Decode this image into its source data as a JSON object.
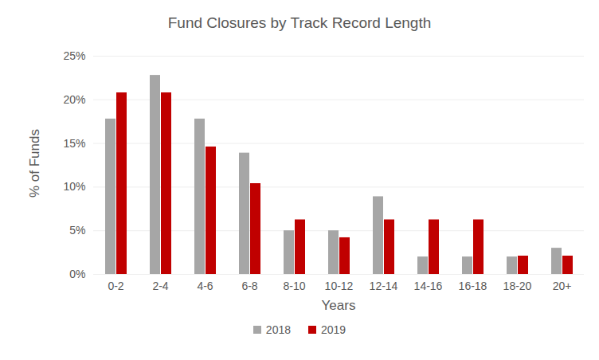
{
  "chart_data": {
    "type": "bar",
    "title": "Fund Closures by Track Record Length",
    "x_label": "Years",
    "y_label": "% of Funds",
    "categories": [
      "0-2",
      "2-4",
      "4-6",
      "6-8",
      "8-10",
      "10-12",
      "12-14",
      "14-16",
      "16-18",
      "18-20",
      "20+"
    ],
    "series": [
      {
        "name": "2018",
        "color": "#a6a6a6",
        "values": [
          17.8,
          22.8,
          17.8,
          13.9,
          5.0,
          5.0,
          8.9,
          2.0,
          2.0,
          2.0,
          3.0
        ]
      },
      {
        "name": "2019",
        "color": "#c00000",
        "values": [
          20.8,
          20.8,
          14.6,
          10.4,
          6.25,
          4.2,
          6.25,
          6.25,
          6.25,
          2.1,
          2.1
        ]
      }
    ],
    "ylim": [
      0,
      25
    ],
    "yticks": [
      {
        "value": 0,
        "label": "0%"
      },
      {
        "value": 5,
        "label": "5%"
      },
      {
        "value": 10,
        "label": "10%"
      },
      {
        "value": 15,
        "label": "15%"
      },
      {
        "value": 20,
        "label": "20%"
      },
      {
        "value": 25,
        "label": "25%"
      }
    ],
    "grid": true,
    "legend": "bottom",
    "data_labels": false
  }
}
